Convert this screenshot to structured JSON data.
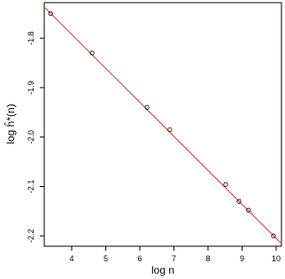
{
  "chart_data": {
    "type": "scatter",
    "x_label": "log n",
    "y_label": "log ĥ*(n)",
    "x": [
      3.38,
      4.6,
      6.21,
      6.88,
      8.52,
      8.91,
      9.19,
      9.92
    ],
    "values": [
      -1.75,
      -1.83,
      -1.94,
      -1.985,
      -2.096,
      -2.13,
      -2.148,
      -2.2
    ],
    "point_color": "#000000",
    "fit": {
      "intercept": -1.517,
      "slope": -0.0688,
      "color": "#e0523f"
    },
    "xlim": [
      3.195,
      10.156
    ],
    "ylim": [
      -2.221,
      -1.728
    ],
    "xticks": [
      4,
      5,
      6,
      7,
      8,
      9,
      10
    ],
    "yticks": [
      -2.2,
      -2.1,
      {
        "value": -2.0,
        "label": "-2.0"
      },
      -1.9,
      -1.8
    ]
  }
}
